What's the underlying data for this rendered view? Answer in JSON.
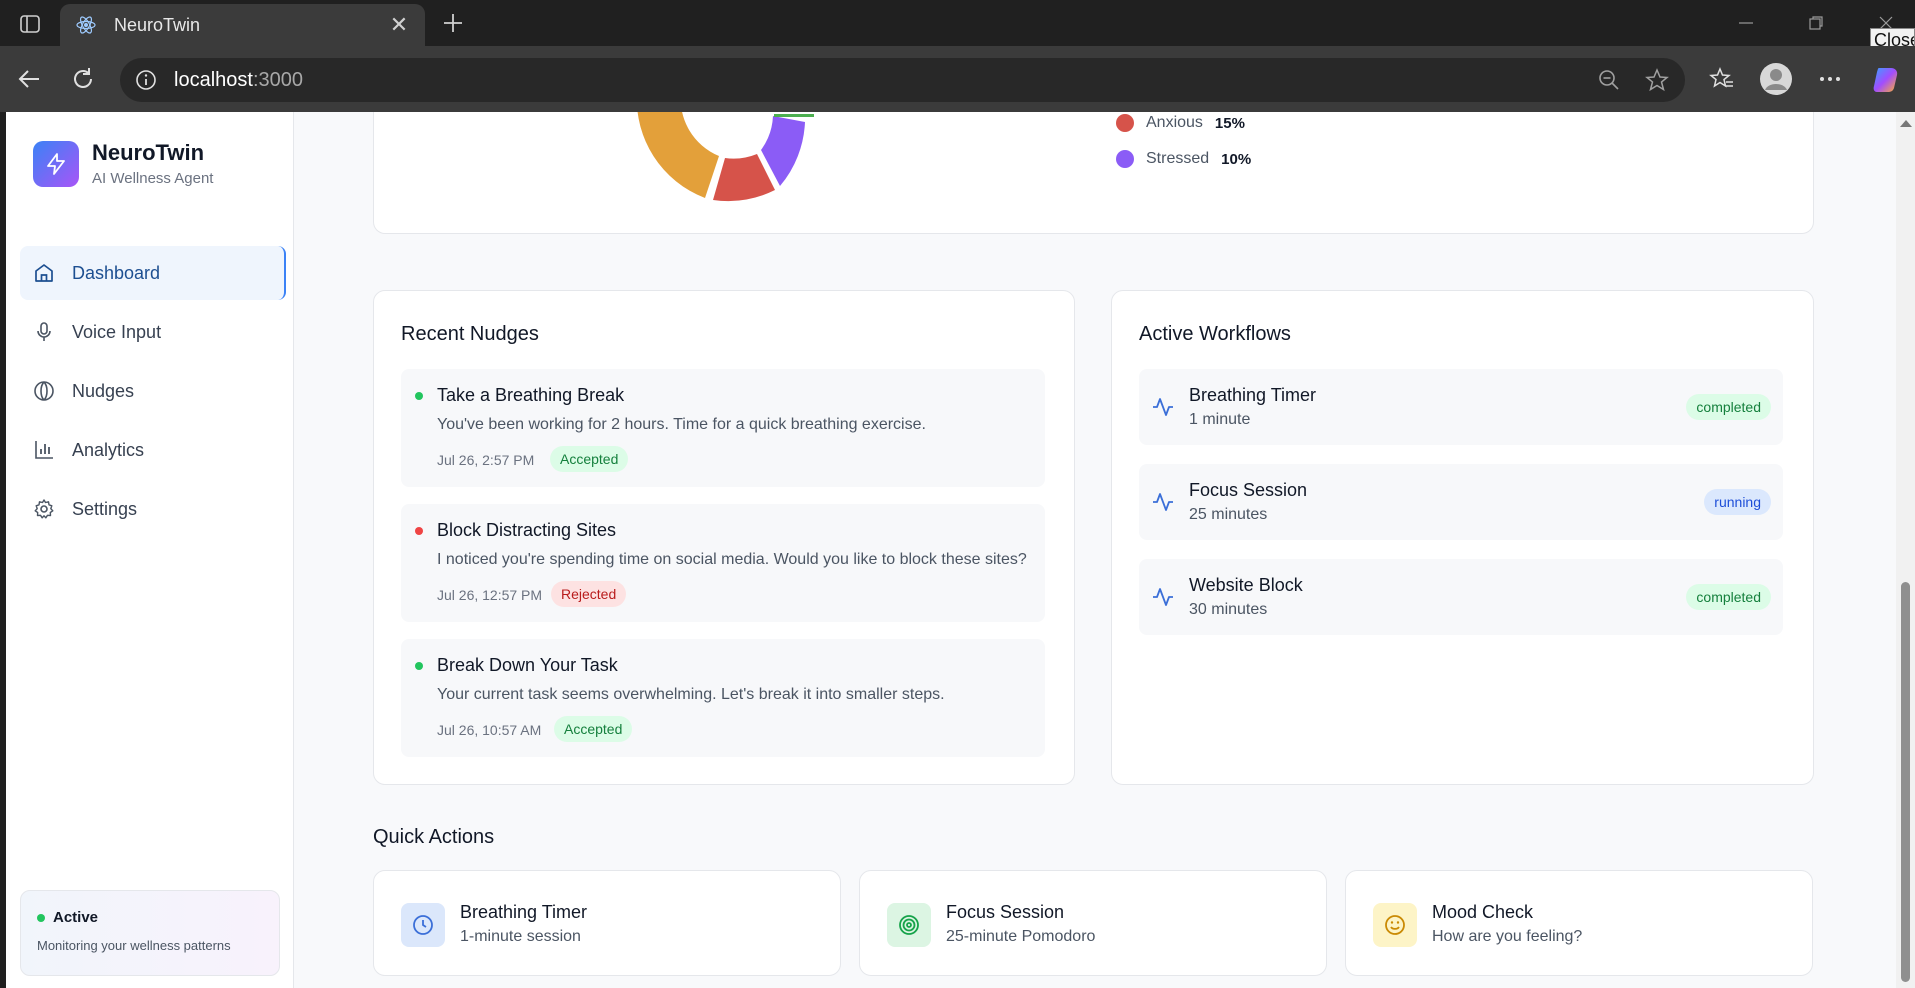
{
  "browser": {
    "tab_title": "NeuroTwin",
    "url_host": "localhost",
    "url_port": ":3000",
    "tooltip": "Close"
  },
  "app": {
    "name": "NeuroTwin",
    "subtitle": "AI Wellness Agent"
  },
  "sidebar": {
    "items": [
      {
        "label": "Dashboard",
        "icon": "home-icon",
        "active": true
      },
      {
        "label": "Voice Input",
        "icon": "microphone-icon",
        "active": false
      },
      {
        "label": "Nudges",
        "icon": "contrast-icon",
        "active": false
      },
      {
        "label": "Analytics",
        "icon": "bar-chart-icon",
        "active": false
      },
      {
        "label": "Settings",
        "icon": "gear-icon",
        "active": false
      }
    ],
    "status": {
      "label": "Active",
      "text": "Monitoring your wellness patterns"
    }
  },
  "mood": {
    "legend": [
      {
        "name": "Anxious",
        "value": "15%",
        "color": "#d6534a"
      },
      {
        "name": "Stressed",
        "value": "10%",
        "color": "#8b5cf6"
      }
    ],
    "donut_colors": {
      "orange": "#e3a03a",
      "red": "#d6534a",
      "purple": "#8b5cf6",
      "green": "#4caf50"
    }
  },
  "nudges": {
    "title": "Recent Nudges",
    "items": [
      {
        "title": "Take a Breathing Break",
        "desc": "You've been working for 2 hours. Time for a quick breathing exercise.",
        "time": "Jul 26, 2:57 PM",
        "status": "Accepted",
        "dot": "#22c55e"
      },
      {
        "title": "Block Distracting Sites",
        "desc": "I noticed you're spending time on social media. Would you like to block these sites?",
        "time": "Jul 26, 12:57 PM",
        "status": "Rejected",
        "dot": "#ef4444"
      },
      {
        "title": "Break Down Your Task",
        "desc": "Your current task seems overwhelming. Let's break it into smaller steps.",
        "time": "Jul 26, 10:57 AM",
        "status": "Accepted",
        "dot": "#22c55e"
      }
    ]
  },
  "workflows": {
    "title": "Active Workflows",
    "items": [
      {
        "name": "Breathing Timer",
        "duration": "1 minute",
        "status": "completed"
      },
      {
        "name": "Focus Session",
        "duration": "25 minutes",
        "status": "running"
      },
      {
        "name": "Website Block",
        "duration": "30 minutes",
        "status": "completed"
      }
    ]
  },
  "quick_actions": {
    "title": "Quick Actions",
    "items": [
      {
        "name": "Breathing Timer",
        "sub": "1-minute session",
        "icon": "clock-icon"
      },
      {
        "name": "Focus Session",
        "sub": "25-minute Pomodoro",
        "icon": "target-icon"
      },
      {
        "name": "Mood Check",
        "sub": "How are you feeling?",
        "icon": "smile-icon"
      }
    ]
  }
}
